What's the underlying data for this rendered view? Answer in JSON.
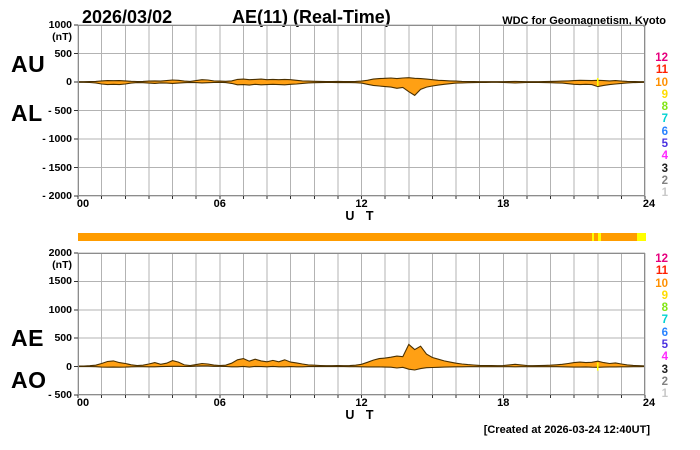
{
  "header": {
    "date": "2026/03/02",
    "title": "AE(11) (Real-Time)",
    "source": "WDC for Geomagnetism, Kyoto"
  },
  "footer": {
    "created": "[Created at 2026-03-24 12:40UT]"
  },
  "colors": {
    "trace_fill": "#ffa014",
    "trace_stroke": "#4a3000",
    "grid": "#b3b3b3",
    "frame": "#8c8c8c",
    "tick": "#333333",
    "text": "#000000"
  },
  "legend": {
    "items": [
      {
        "label": "12",
        "color": "#e6007e"
      },
      {
        "label": "11",
        "color": "#ff2000"
      },
      {
        "label": "10",
        "color": "#ff9000"
      },
      {
        "label": "9",
        "color": "#ffdc00"
      },
      {
        "label": "8",
        "color": "#82e614"
      },
      {
        "label": "7",
        "color": "#00d2d2"
      },
      {
        "label": "6",
        "color": "#2882ff"
      },
      {
        "label": "5",
        "color": "#4b32e1"
      },
      {
        "label": "4",
        "color": "#ff28ff"
      },
      {
        "label": "3",
        "color": "#1e1e1e"
      },
      {
        "label": "2",
        "color": "#828282"
      },
      {
        "label": "1",
        "color": "#c8c8c8"
      }
    ]
  },
  "quality_bar": {
    "base_color": "#ff9c00",
    "highlight_color": "#ffff00",
    "range_hours": [
      0,
      24
    ],
    "segments": [
      {
        "start": 21.7,
        "end": 21.82
      },
      {
        "start": 21.96,
        "end": 22.1
      },
      {
        "start": 23.62,
        "end": 24.0
      }
    ]
  },
  "chart_data": [
    {
      "type": "area",
      "panel": "top",
      "ylabel_unit": "(nT)",
      "ylim": [
        -2000,
        1000
      ],
      "yticks": [
        1000,
        500,
        0,
        -500,
        -1000,
        -1500,
        -2000
      ],
      "xlim": [
        0,
        24
      ],
      "xticks": [
        {
          "t": 0,
          "label": "00"
        },
        {
          "t": 6,
          "label": "06"
        },
        {
          "t": 12,
          "label": "12"
        },
        {
          "t": 18,
          "label": "18"
        },
        {
          "t": 24,
          "label": "24"
        }
      ],
      "xlabel": "U T",
      "grid": true,
      "t_step": 0.25,
      "marker": {
        "t": 22.0,
        "color": "#ffff00"
      },
      "series": [
        {
          "name": "AU",
          "values": [
            5,
            5,
            8,
            10,
            20,
            25,
            22,
            25,
            20,
            12,
            8,
            10,
            15,
            20,
            15,
            25,
            35,
            30,
            15,
            10,
            25,
            40,
            35,
            20,
            15,
            12,
            20,
            45,
            50,
            40,
            45,
            50,
            40,
            45,
            40,
            45,
            40,
            30,
            20,
            15,
            12,
            10,
            8,
            8,
            10,
            8,
            8,
            10,
            15,
            30,
            50,
            60,
            65,
            70,
            60,
            70,
            75,
            65,
            60,
            50,
            40,
            30,
            25,
            20,
            15,
            10,
            8,
            8,
            6,
            6,
            5,
            5,
            6,
            8,
            10,
            8,
            6,
            5,
            6,
            8,
            10,
            12,
            15,
            20,
            25,
            30,
            28,
            25,
            30,
            25,
            20,
            25,
            15,
            10,
            8,
            6,
            5
          ]
        },
        {
          "name": "AL",
          "values": [
            -5,
            -6,
            -8,
            -15,
            -35,
            -45,
            -40,
            -45,
            -35,
            -20,
            -10,
            -12,
            -20,
            -25,
            -15,
            -20,
            -25,
            -20,
            -12,
            -8,
            -10,
            -15,
            -12,
            -8,
            -6,
            -10,
            -25,
            -50,
            -45,
            -55,
            -40,
            -50,
            -45,
            -40,
            -45,
            -50,
            -40,
            -35,
            -25,
            -15,
            -12,
            -10,
            -8,
            -8,
            -10,
            -8,
            -10,
            -12,
            -20,
            -40,
            -60,
            -70,
            -80,
            -90,
            -110,
            -95,
            -170,
            -235,
            -130,
            -90,
            -70,
            -55,
            -40,
            -30,
            -20,
            -15,
            -12,
            -10,
            -8,
            -8,
            -6,
            -6,
            -8,
            -12,
            -15,
            -12,
            -8,
            -6,
            -8,
            -10,
            -12,
            -15,
            -20,
            -30,
            -40,
            -45,
            -40,
            -45,
            -80,
            -60,
            -45,
            -35,
            -25,
            -15,
            -10,
            -8,
            -6
          ]
        }
      ]
    },
    {
      "type": "area",
      "panel": "bottom",
      "ylabel_unit": "(nT)",
      "ylim": [
        -500,
        2000
      ],
      "yticks": [
        2000,
        1500,
        1000,
        500,
        0,
        -500
      ],
      "xlim": [
        0,
        24
      ],
      "xticks": [
        {
          "t": 0,
          "label": "00"
        },
        {
          "t": 6,
          "label": "06"
        },
        {
          "t": 12,
          "label": "12"
        },
        {
          "t": 18,
          "label": "18"
        },
        {
          "t": 24,
          "label": "24"
        }
      ],
      "xlabel": "U T",
      "grid": true,
      "t_step": 0.25,
      "marker": {
        "t": 22.0,
        "color": "#ffff00"
      },
      "series": [
        {
          "name": "AE",
          "values": [
            10,
            11,
            16,
            25,
            55,
            90,
            100,
            70,
            55,
            32,
            18,
            25,
            45,
            70,
            40,
            60,
            105,
            80,
            30,
            18,
            35,
            55,
            45,
            28,
            20,
            25,
            60,
            120,
            140,
            95,
            130,
            100,
            85,
            110,
            85,
            120,
            80,
            65,
            45,
            30,
            24,
            20,
            16,
            16,
            20,
            16,
            18,
            25,
            40,
            75,
            115,
            140,
            150,
            165,
            185,
            175,
            390,
            300,
            360,
            220,
            160,
            130,
            100,
            80,
            60,
            45,
            35,
            28,
            22,
            20,
            18,
            16,
            20,
            30,
            40,
            30,
            20,
            16,
            18,
            22,
            25,
            32,
            40,
            55,
            70,
            80,
            70,
            75,
            95,
            70,
            55,
            65,
            45,
            30,
            22,
            16,
            12
          ]
        },
        {
          "name": "AO",
          "values": [
            0,
            0,
            0,
            -2,
            -8,
            -10,
            -9,
            -10,
            -8,
            -4,
            -1,
            -1,
            -3,
            -3,
            0,
            3,
            5,
            5,
            2,
            1,
            8,
            13,
            12,
            6,
            5,
            1,
            -3,
            -3,
            3,
            -8,
            3,
            0,
            -3,
            3,
            -3,
            -3,
            0,
            -3,
            -3,
            0,
            0,
            0,
            0,
            0,
            0,
            0,
            -1,
            -1,
            -3,
            -5,
            -5,
            -5,
            -8,
            -10,
            -25,
            -13,
            -45,
            -60,
            -35,
            -20,
            -15,
            -13,
            -8,
            -5,
            -3,
            -3,
            -2,
            -1,
            -1,
            -1,
            -1,
            -1,
            -1,
            -2,
            -3,
            -2,
            -1,
            -1,
            -1,
            -1,
            -1,
            -2,
            -3,
            -5,
            -8,
            -8,
            -6,
            -10,
            -13,
            -8,
            -6,
            -5,
            -4,
            -3,
            -2,
            -1,
            0
          ]
        }
      ]
    }
  ]
}
